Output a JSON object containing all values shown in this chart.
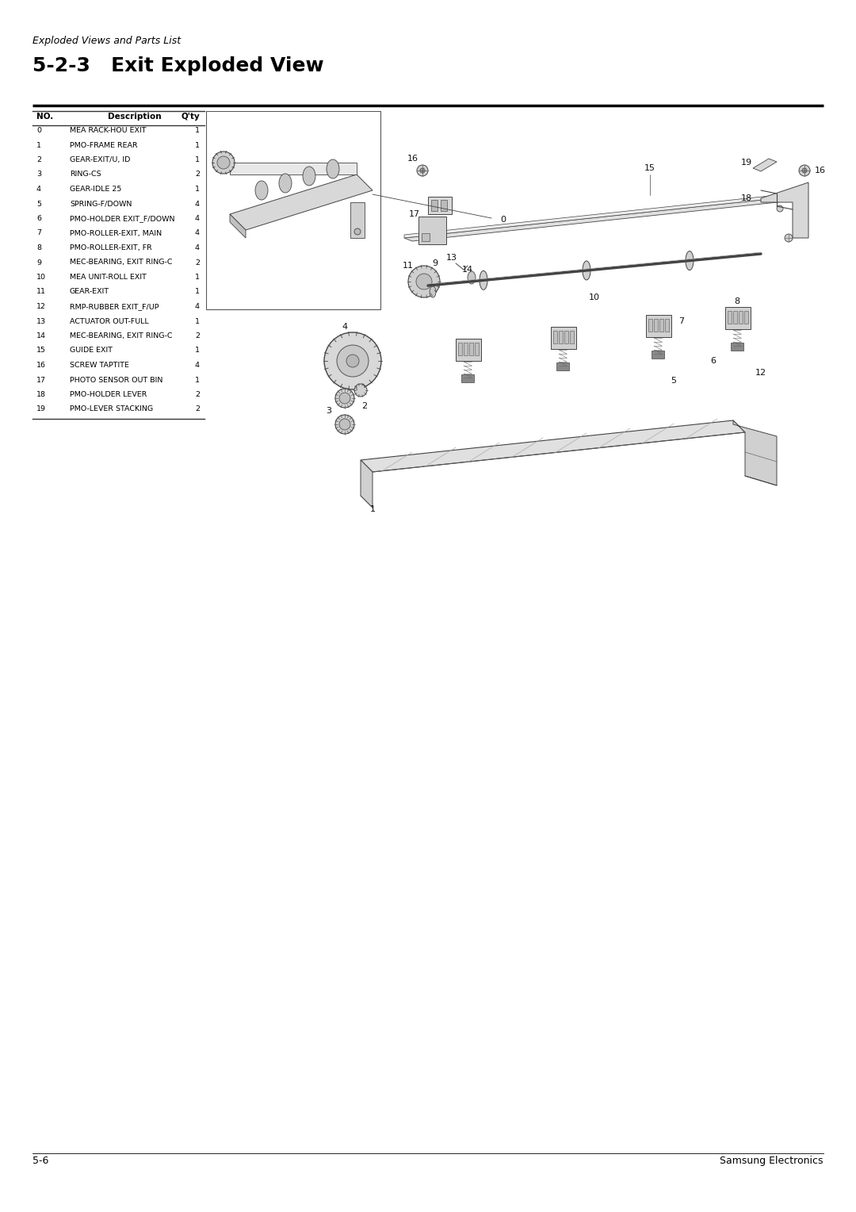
{
  "background_color": "#ffffff",
  "page_header": "Exploded Views and Parts List",
  "section_title": "5-2-3   Exit Exploded View",
  "footer_left": "5-6",
  "footer_right": "Samsung Electronics",
  "table_headers": [
    "NO.",
    "Description",
    "Q'ty"
  ],
  "table_rows": [
    [
      "0",
      "MEA RACK-HOU EXIT",
      "1"
    ],
    [
      "1",
      "PMO-FRAME REAR",
      "1"
    ],
    [
      "2",
      "GEAR-EXIT/U, ID",
      "1"
    ],
    [
      "3",
      "RING-CS",
      "2"
    ],
    [
      "4",
      "GEAR-IDLE 25",
      "1"
    ],
    [
      "5",
      "SPRING-F/DOWN",
      "4"
    ],
    [
      "6",
      "PMO-HOLDER EXIT_F/DOWN",
      "4"
    ],
    [
      "7",
      "PMO-ROLLER-EXIT, MAIN",
      "4"
    ],
    [
      "8",
      "PMO-ROLLER-EXIT, FR",
      "4"
    ],
    [
      "9",
      "MEC-BEARING, EXIT RING-C",
      "2"
    ],
    [
      "10",
      "MEA UNIT-ROLL EXIT",
      "1"
    ],
    [
      "11",
      "GEAR-EXIT",
      "1"
    ],
    [
      "12",
      "RMP-RUBBER EXIT_F/UP",
      "4"
    ],
    [
      "13",
      "ACTUATOR OUT-FULL",
      "1"
    ],
    [
      "14",
      "MEC-BEARING, EXIT RING-C",
      "2"
    ],
    [
      "15",
      "GUIDE EXIT",
      "1"
    ],
    [
      "16",
      "SCREW TAPTITE",
      "4"
    ],
    [
      "17",
      "PHOTO SENSOR OUT BIN",
      "1"
    ],
    [
      "18",
      "PMO-HOLDER LEVER",
      "2"
    ],
    [
      "19",
      "PMO-LEVER STACKING",
      "2"
    ]
  ],
  "text_color": "#000000",
  "lc": "#333333",
  "lc_light": "#888888",
  "fill_light": "#e8e8e8",
  "fill_mid": "#cccccc",
  "fill_dark": "#aaaaaa"
}
